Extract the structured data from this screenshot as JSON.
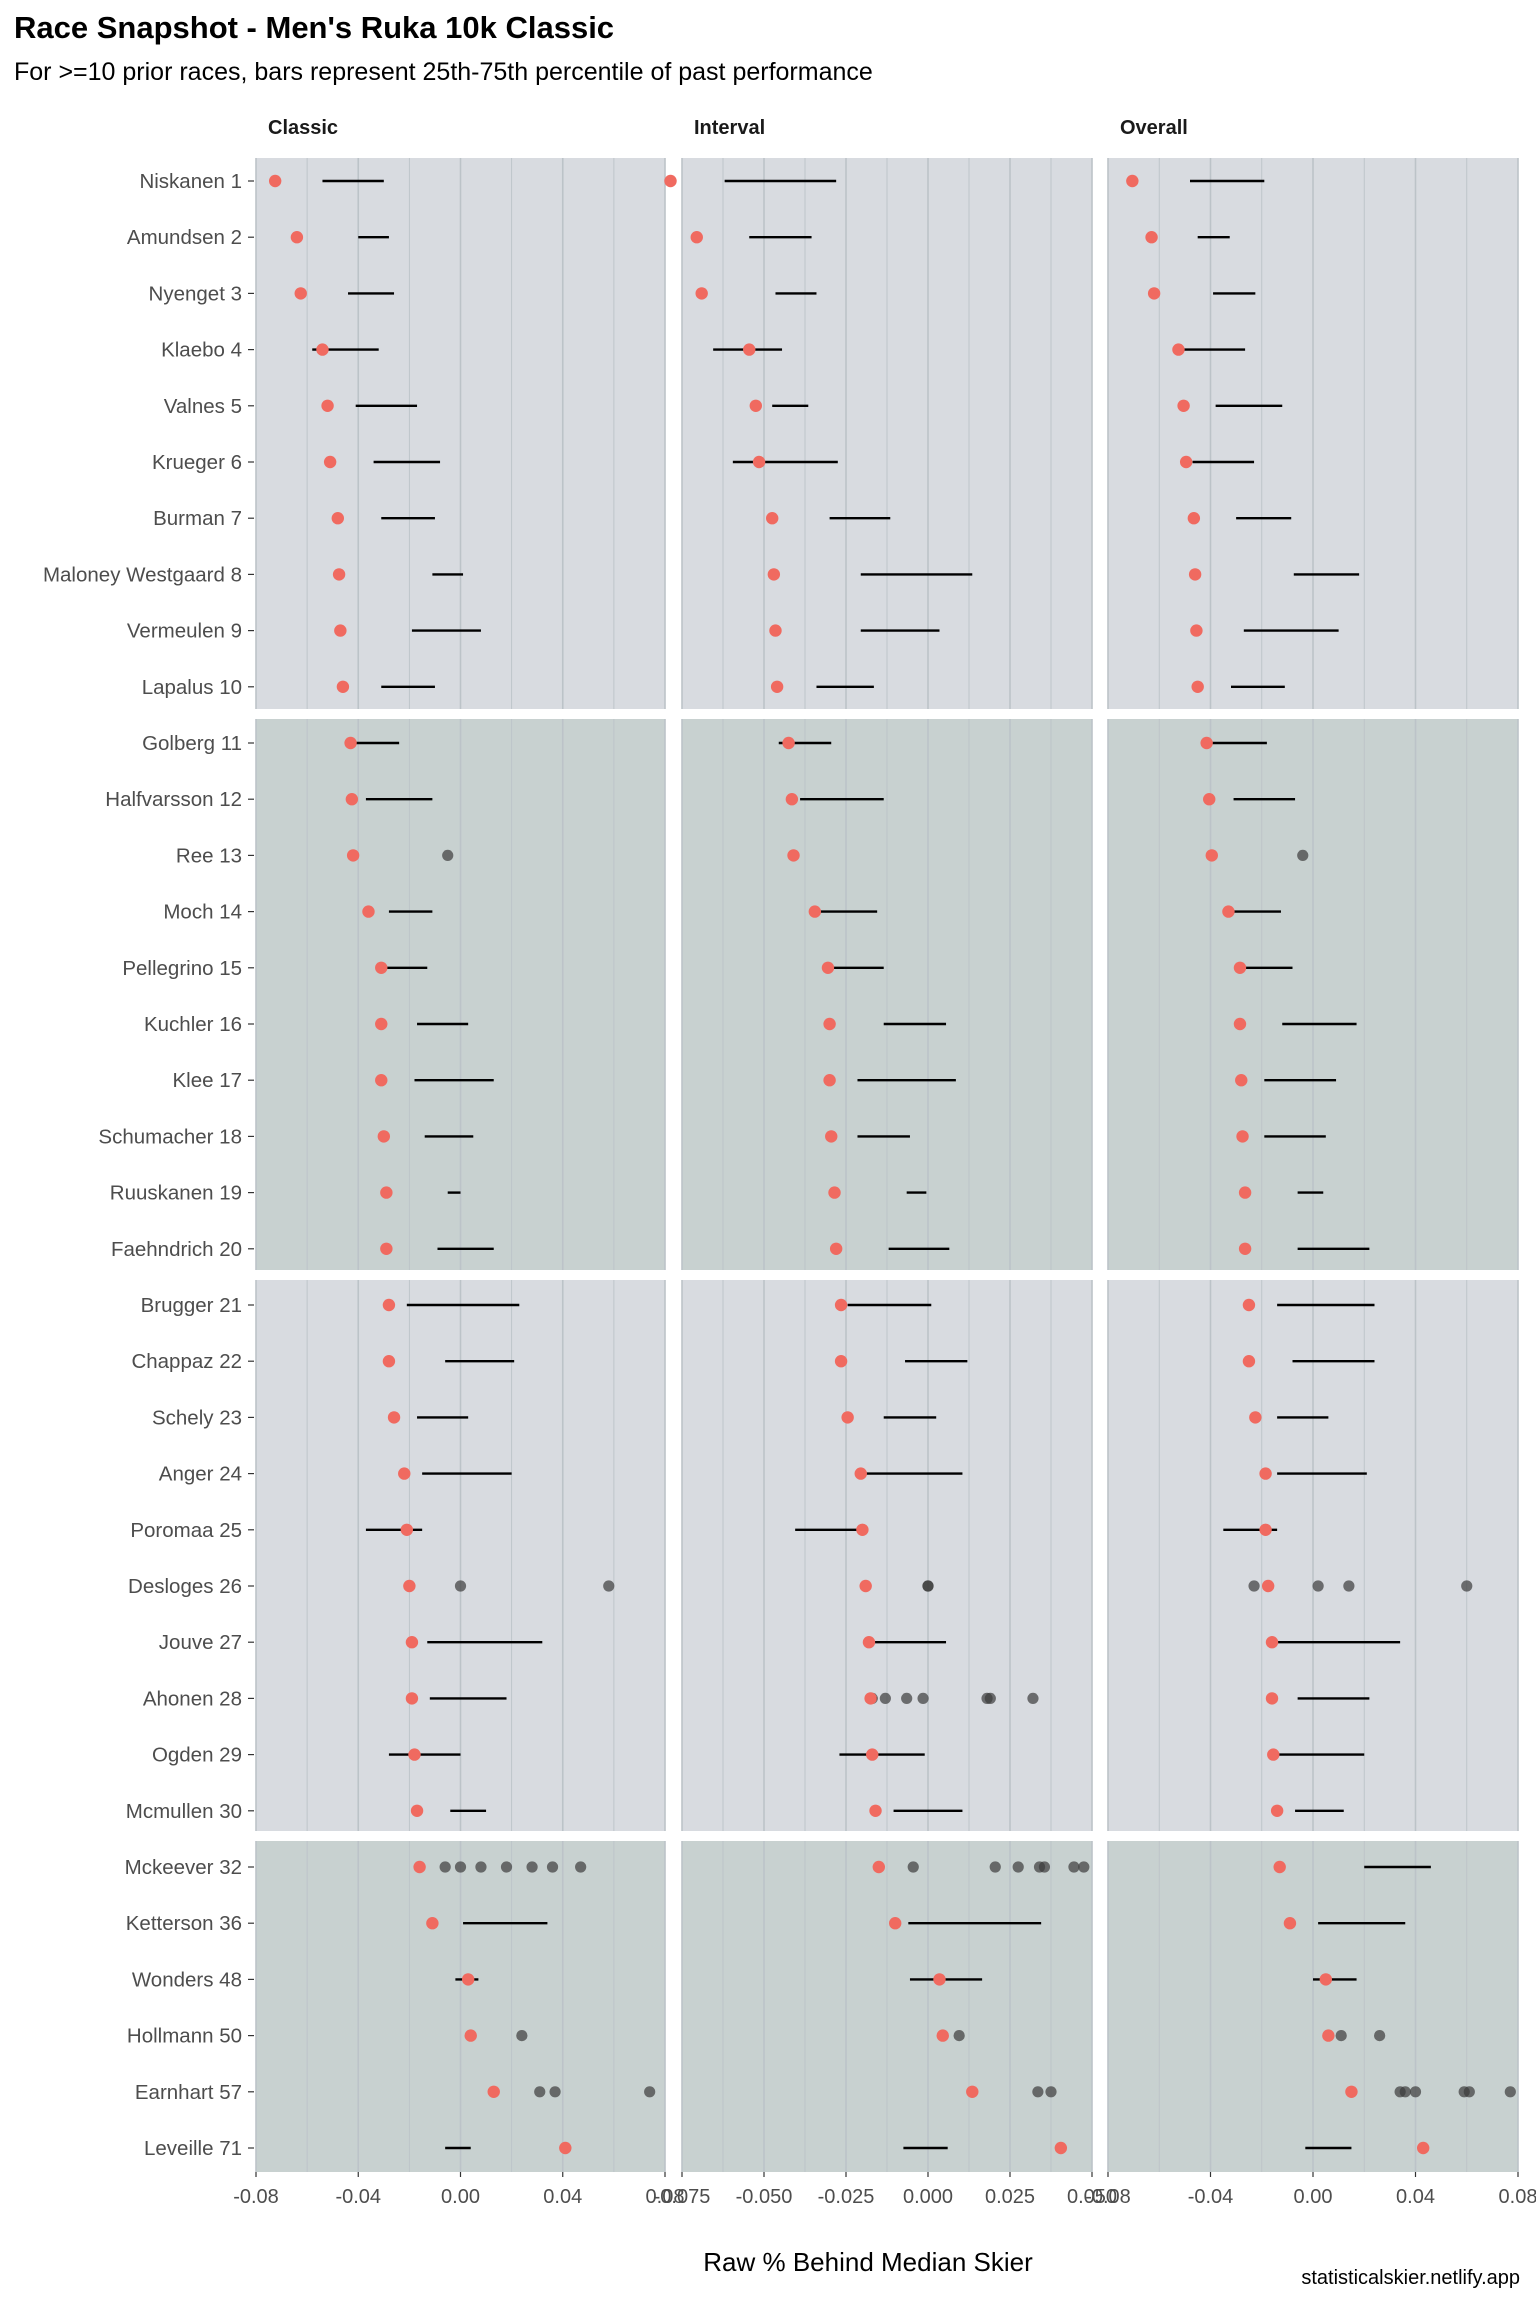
{
  "chart_data": {
    "type": "dot-range",
    "title": "Race Snapshot -  Men's Ruka 10k Classic",
    "subtitle": "For >=10 prior races, bars represent 25th-75th percentile of past performance",
    "xlabel": "Raw % Behind Median Skier",
    "caption": "statisticalskier.netlify.app",
    "colors": {
      "current_race_point": "#f06a60",
      "past_race_point": "#3c3c3c",
      "range_bar": "#000000",
      "panel_band_light": "#d8dbe0",
      "panel_band_dark": "#c8d1d0",
      "gridline": "#bcc3c8"
    },
    "facets": [
      {
        "name": "Classic",
        "xlim": [
          -0.08,
          0.08
        ],
        "ticks": [
          "-0.08",
          "-0.04",
          "0.00",
          "0.04",
          "0.08"
        ],
        "tick_values": [
          -0.08,
          -0.04,
          0,
          0.04,
          0.08
        ]
      },
      {
        "name": "Interval",
        "xlim": [
          -0.075,
          0.05
        ],
        "ticks": [
          "-0.075",
          "-0.050",
          "-0.025",
          "0.000",
          "0.025",
          "0.050"
        ],
        "tick_values": [
          -0.075,
          -0.05,
          -0.025,
          0,
          0.025,
          0.05
        ]
      },
      {
        "name": "Overall",
        "xlim": [
          -0.08,
          0.08
        ],
        "ticks": [
          "-0.08",
          "-0.04",
          "0.00",
          "0.04",
          "0.08"
        ],
        "tick_values": [
          -0.08,
          -0.04,
          0,
          0.04,
          0.08
        ]
      }
    ],
    "skiers": [
      {
        "label": "Niskanen 1",
        "current": [
          -0.0725,
          -0.0785,
          -0.0705
        ],
        "range": [
          [
            -0.054,
            -0.03
          ],
          [
            -0.062,
            -0.028
          ],
          [
            -0.048,
            -0.019
          ]
        ],
        "past": [
          [],
          [],
          []
        ]
      },
      {
        "label": "Amundsen 2",
        "current": [
          -0.064,
          -0.0705,
          -0.063
        ],
        "range": [
          [
            -0.04,
            -0.028
          ],
          [
            -0.0545,
            -0.0355
          ],
          [
            -0.045,
            -0.0325
          ]
        ],
        "past": [
          [],
          [],
          []
        ]
      },
      {
        "label": "Nyenget 3",
        "current": [
          -0.0625,
          -0.069,
          -0.062
        ],
        "range": [
          [
            -0.044,
            -0.026
          ],
          [
            -0.0465,
            -0.034
          ],
          [
            -0.039,
            -0.0225
          ]
        ],
        "past": [
          [],
          [],
          []
        ]
      },
      {
        "label": "Klaebo 4",
        "current": [
          -0.054,
          -0.0545,
          -0.0525
        ],
        "range": [
          [
            -0.058,
            -0.032
          ],
          [
            -0.0655,
            -0.0445
          ],
          [
            -0.053,
            -0.0265
          ]
        ],
        "past": [
          [],
          [],
          []
        ]
      },
      {
        "label": "Valnes 5",
        "current": [
          -0.052,
          -0.0525,
          -0.0505
        ],
        "range": [
          [
            -0.041,
            -0.017
          ],
          [
            -0.0475,
            -0.0365
          ],
          [
            -0.038,
            -0.012
          ]
        ],
        "past": [
          [],
          [],
          []
        ]
      },
      {
        "label": "Krueger 6",
        "current": [
          -0.051,
          -0.0515,
          -0.0495
        ],
        "range": [
          [
            -0.034,
            -0.008
          ],
          [
            -0.0595,
            -0.0275
          ],
          [
            -0.047,
            -0.023
          ]
        ],
        "past": [
          [],
          [],
          []
        ]
      },
      {
        "label": "Burman 7",
        "current": [
          -0.048,
          -0.0475,
          -0.0465
        ],
        "range": [
          [
            -0.031,
            -0.01
          ],
          [
            -0.03,
            -0.0115
          ],
          [
            -0.03,
            -0.0085
          ]
        ],
        "past": [
          [],
          [],
          []
        ]
      },
      {
        "label": "Maloney Westgaard 8",
        "current": [
          -0.0475,
          -0.047,
          -0.046
        ],
        "range": [
          [
            -0.011,
            0.001
          ],
          [
            -0.0205,
            0.0135
          ],
          [
            -0.0075,
            0.018
          ]
        ],
        "past": [
          [],
          [],
          []
        ]
      },
      {
        "label": "Vermeulen 9",
        "current": [
          -0.047,
          -0.0465,
          -0.0455
        ],
        "range": [
          [
            -0.019,
            0.008
          ],
          [
            -0.0205,
            0.0035
          ],
          [
            -0.027,
            0.01
          ]
        ],
        "past": [
          [],
          [],
          []
        ]
      },
      {
        "label": "Lapalus 10",
        "current": [
          -0.046,
          -0.046,
          -0.045
        ],
        "range": [
          [
            -0.031,
            -0.01
          ],
          [
            -0.034,
            -0.0165
          ],
          [
            -0.032,
            -0.011
          ]
        ],
        "past": [
          [],
          [],
          []
        ]
      },
      {
        "label": "Golberg 11",
        "current": [
          -0.043,
          -0.0425,
          -0.0415
        ],
        "range": [
          [
            -0.044,
            -0.024
          ],
          [
            -0.0455,
            -0.0295
          ],
          [
            -0.04,
            -0.018
          ]
        ],
        "past": [
          [],
          [],
          []
        ]
      },
      {
        "label": "Halfvarsson 12",
        "current": [
          -0.0425,
          -0.0415,
          -0.0405
        ],
        "range": [
          [
            -0.037,
            -0.011
          ],
          [
            -0.039,
            -0.0135
          ],
          [
            -0.031,
            -0.007
          ]
        ],
        "past": [
          [],
          [],
          []
        ]
      },
      {
        "label": "Ree 13",
        "current": [
          -0.042,
          -0.041,
          -0.0395
        ],
        "range": null,
        "past": [
          [
            -0.005
          ],
          [],
          [
            -0.004
          ]
        ]
      },
      {
        "label": "Moch 14",
        "current": [
          -0.036,
          -0.0345,
          -0.033
        ],
        "range": [
          [
            -0.028,
            -0.011
          ],
          [
            -0.035,
            -0.0155
          ],
          [
            -0.031,
            -0.0125
          ]
        ],
        "past": [
          [],
          [],
          []
        ]
      },
      {
        "label": "Pellegrino 15",
        "current": [
          -0.031,
          -0.0305,
          -0.0285
        ],
        "range": [
          [
            -0.03,
            -0.013
          ],
          [
            -0.03,
            -0.0135
          ],
          [
            -0.028,
            -0.008
          ]
        ],
        "past": [
          [],
          [],
          []
        ]
      },
      {
        "label": "Kuchler 16",
        "current": [
          -0.031,
          -0.03,
          -0.0285
        ],
        "range": [
          [
            -0.017,
            0.003
          ],
          [
            -0.0135,
            0.0055
          ],
          [
            -0.012,
            0.017
          ]
        ],
        "past": [
          [],
          [],
          []
        ]
      },
      {
        "label": "Klee 17",
        "current": [
          -0.031,
          -0.03,
          -0.028
        ],
        "range": [
          [
            -0.018,
            0.013
          ],
          [
            -0.0215,
            0.0085
          ],
          [
            -0.019,
            0.009
          ]
        ],
        "past": [
          [],
          [],
          []
        ]
      },
      {
        "label": "Schumacher 18",
        "current": [
          -0.03,
          -0.0295,
          -0.0275
        ],
        "range": [
          [
            -0.014,
            0.005
          ],
          [
            -0.0215,
            -0.0055
          ],
          [
            -0.019,
            0.005
          ]
        ],
        "past": [
          [],
          [],
          []
        ]
      },
      {
        "label": "Ruuskanen 19",
        "current": [
          -0.029,
          -0.0285,
          -0.0265
        ],
        "range": [
          [
            -0.005,
            0.0
          ],
          [
            -0.0065,
            -0.0005
          ],
          [
            -0.006,
            0.004
          ]
        ],
        "past": [
          [],
          [],
          []
        ]
      },
      {
        "label": "Faehndrich 20",
        "current": [
          -0.029,
          -0.028,
          -0.0265
        ],
        "range": [
          [
            -0.009,
            0.013
          ],
          [
            -0.012,
            0.0065
          ],
          [
            -0.006,
            0.022
          ]
        ],
        "past": [
          [],
          [],
          []
        ]
      },
      {
        "label": "Brugger 21",
        "current": [
          -0.028,
          -0.0265,
          -0.025
        ],
        "range": [
          [
            -0.021,
            0.023
          ],
          [
            -0.0245,
            0.001
          ],
          [
            -0.014,
            0.024
          ]
        ],
        "past": [
          [],
          [],
          []
        ]
      },
      {
        "label": "Chappaz 22",
        "current": [
          -0.028,
          -0.0265,
          -0.025
        ],
        "range": [
          [
            -0.006,
            0.021
          ],
          [
            -0.007,
            0.012
          ],
          [
            -0.008,
            0.024
          ]
        ],
        "past": [
          [],
          [],
          []
        ]
      },
      {
        "label": "Schely 23",
        "current": [
          -0.026,
          -0.0245,
          -0.0225
        ],
        "range": [
          [
            -0.017,
            0.003
          ],
          [
            -0.0135,
            0.0025
          ],
          [
            -0.014,
            0.006
          ]
        ],
        "past": [
          [],
          [],
          []
        ]
      },
      {
        "label": "Anger 24",
        "current": [
          -0.022,
          -0.0205,
          -0.0185
        ],
        "range": [
          [
            -0.015,
            0.02
          ],
          [
            -0.0205,
            0.0105
          ],
          [
            -0.014,
            0.021
          ]
        ],
        "past": [
          [],
          [],
          []
        ]
      },
      {
        "label": "Poromaa 25",
        "current": [
          -0.021,
          -0.02,
          -0.0185
        ],
        "range": [
          [
            -0.037,
            -0.015
          ],
          [
            -0.0405,
            -0.0185
          ],
          [
            -0.035,
            -0.014
          ]
        ],
        "past": [
          [],
          [],
          []
        ]
      },
      {
        "label": "Desloges 26",
        "current": [
          -0.02,
          -0.019,
          -0.0175
        ],
        "range": null,
        "past": [
          [
            0.0,
            0.058
          ],
          [
            0.0,
            0.0
          ],
          [
            -0.023,
            0.002,
            0.014,
            0.06
          ]
        ]
      },
      {
        "label": "Jouve 27",
        "current": [
          -0.019,
          -0.018,
          -0.016
        ],
        "range": [
          [
            -0.013,
            0.032
          ],
          [
            -0.018,
            0.0055
          ],
          [
            -0.016,
            0.034
          ]
        ],
        "past": [
          [],
          [],
          []
        ]
      },
      {
        "label": "Ahonen 28",
        "current": [
          -0.019,
          -0.0175,
          -0.016
        ],
        "range": [
          [
            -0.012,
            0.018
          ],
          [
            -0.018,
            -0.0155
          ],
          [
            -0.006,
            0.022
          ]
        ],
        "past": [
          [],
          [
            -0.017,
            -0.013,
            -0.0065,
            -0.0015,
            0.018,
            0.019,
            0.032
          ],
          []
        ]
      },
      {
        "label": "Ogden 29",
        "current": [
          -0.018,
          -0.017,
          -0.0155
        ],
        "range": [
          [
            -0.028,
            0.0
          ],
          [
            -0.027,
            -0.001
          ],
          [
            -0.016,
            0.02
          ]
        ],
        "past": [
          [],
          [],
          []
        ]
      },
      {
        "label": "Mcmullen 30",
        "current": [
          -0.017,
          -0.016,
          -0.014
        ],
        "range": [
          [
            -0.004,
            0.01
          ],
          [
            -0.0105,
            0.0105
          ],
          [
            -0.007,
            0.012
          ]
        ],
        "past": [
          [],
          [],
          []
        ]
      },
      {
        "label": "Mckeever 32",
        "current": [
          -0.016,
          -0.015,
          -0.013
        ],
        "range": [
          [],
          [],
          [
            0.02,
            0.046
          ]
        ],
        "past": [
          [
            -0.006,
            0.0,
            0.008,
            0.018,
            0.028,
            0.036,
            0.047
          ],
          [
            -0.0045,
            0.0205,
            0.0275,
            0.034,
            0.0355,
            0.0445,
            0.0475
          ],
          []
        ]
      },
      {
        "label": "Ketterson 36",
        "current": [
          -0.011,
          -0.01,
          -0.009
        ],
        "range": [
          [
            0.001,
            0.034
          ],
          [
            -0.006,
            0.0345
          ],
          [
            0.002,
            0.036
          ]
        ],
        "past": [
          [],
          [],
          []
        ]
      },
      {
        "label": "Wonders 48",
        "current": [
          0.003,
          0.0035,
          0.005
        ],
        "range": [
          [
            -0.002,
            0.007
          ],
          [
            -0.0055,
            0.0165
          ],
          [
            0.0,
            0.017
          ]
        ],
        "past": [
          [],
          [],
          []
        ]
      },
      {
        "label": "Hollmann 50",
        "current": [
          0.004,
          0.0045,
          0.006
        ],
        "range": null,
        "past": [
          [
            0.024
          ],
          [
            0.0095
          ],
          [
            0.011,
            0.026
          ]
        ]
      },
      {
        "label": "Earnhart 57",
        "current": [
          0.013,
          0.0135,
          0.015
        ],
        "range": null,
        "past": [
          [
            0.031,
            0.037,
            0.074
          ],
          [
            0.0335,
            0.0375
          ],
          [
            0.034,
            0.036,
            0.04,
            0.059,
            0.061,
            0.077
          ]
        ]
      },
      {
        "label": "Leveille 71",
        "current": [
          0.041,
          0.0405,
          0.043
        ],
        "range": [
          [
            -0.006,
            0.004
          ],
          [
            -0.0075,
            0.006
          ],
          [
            -0.003,
            0.015
          ]
        ],
        "past": [
          [],
          [],
          []
        ]
      }
    ]
  }
}
